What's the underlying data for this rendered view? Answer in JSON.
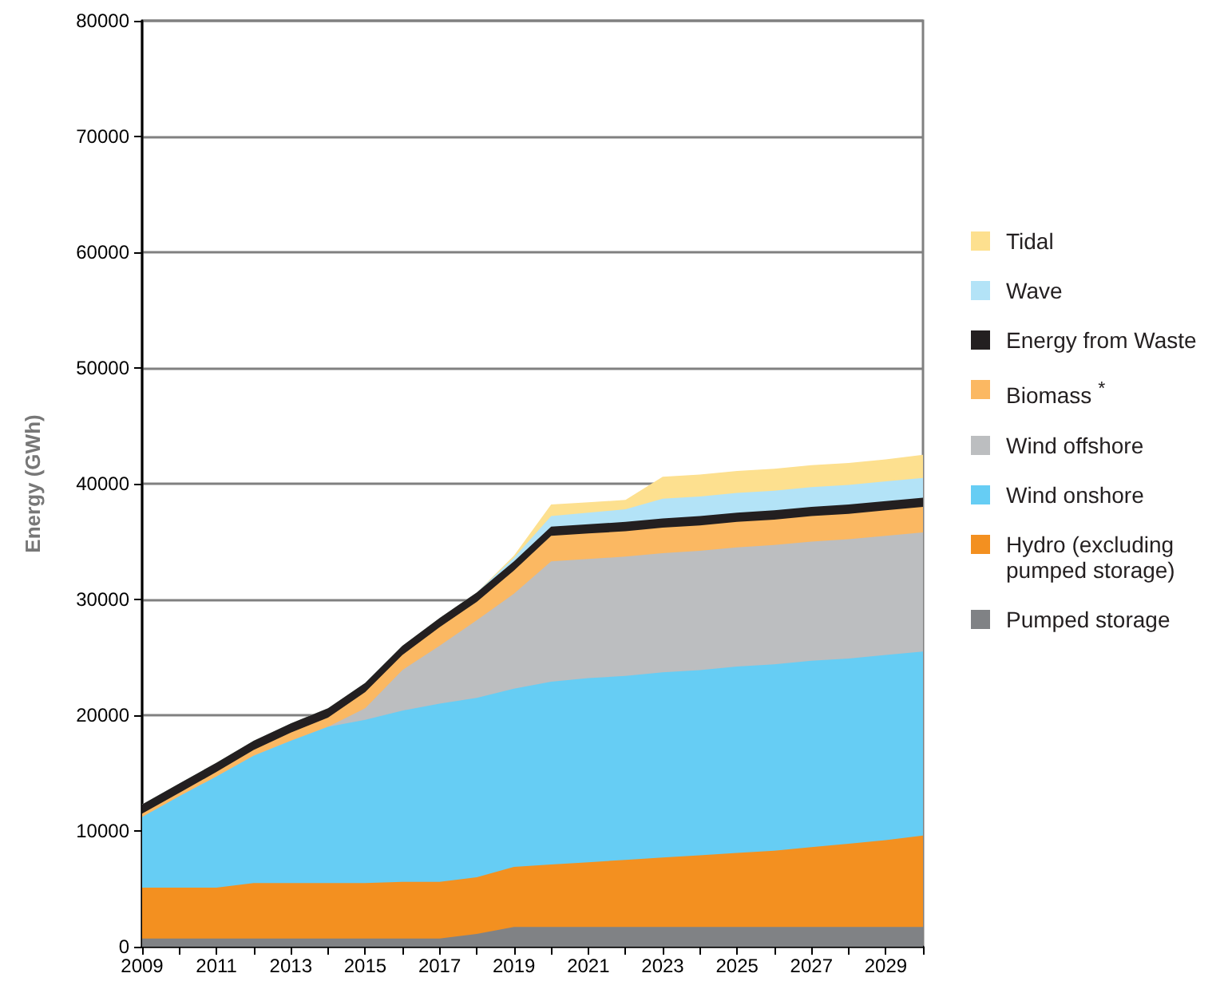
{
  "chart_data": {
    "type": "area",
    "stacked": true,
    "ylabel": "Energy (GWh)",
    "x": [
      2009,
      2010,
      2011,
      2012,
      2013,
      2014,
      2015,
      2016,
      2017,
      2018,
      2019,
      2020,
      2021,
      2022,
      2023,
      2024,
      2025,
      2026,
      2027,
      2028,
      2029,
      2030
    ],
    "xlim": [
      2009,
      2030
    ],
    "xticks": [
      2009,
      {
        "value": 2010,
        "label": null
      },
      2011,
      {
        "value": 2012,
        "label": null
      },
      2013,
      {
        "value": 2014,
        "label": null
      },
      2015,
      {
        "value": 2016,
        "label": null
      },
      2017,
      {
        "value": 2018,
        "label": null
      },
      2019,
      {
        "value": 2020,
        "label": null
      },
      2021,
      {
        "value": 2022,
        "label": null
      },
      2023,
      {
        "value": 2024,
        "label": null
      },
      2025,
      {
        "value": 2026,
        "label": null
      },
      2027,
      {
        "value": 2028,
        "label": null
      },
      2029,
      {
        "value": 2030,
        "label": null
      }
    ],
    "ylim": [
      0,
      80000
    ],
    "yticks": [
      0,
      10000,
      20000,
      30000,
      40000,
      50000,
      60000,
      70000,
      80000
    ],
    "grid": "y",
    "legend": "right",
    "series": [
      {
        "name": "Pumped storage",
        "color": "#808285",
        "values": [
          700,
          700,
          700,
          700,
          700,
          700,
          700,
          700,
          700,
          1100,
          1700,
          1700,
          1700,
          1700,
          1700,
          1700,
          1700,
          1700,
          1700,
          1700,
          1700,
          1700
        ]
      },
      {
        "name": "Hydro (excluding pumped storage)",
        "color": "#f39020",
        "values": [
          4400,
          4400,
          4400,
          4800,
          4800,
          4800,
          4800,
          4900,
          4900,
          4900,
          5200,
          5400,
          5600,
          5800,
          6000,
          6200,
          6400,
          6600,
          6900,
          7200,
          7500,
          7900
        ]
      },
      {
        "name": "Wind onshore",
        "color": "#66cdf4",
        "values": [
          6100,
          7900,
          9600,
          11000,
          12300,
          13500,
          14100,
          14800,
          15400,
          15500,
          15400,
          15800,
          15900,
          15900,
          16000,
          16000,
          16100,
          16100,
          16100,
          16000,
          16000,
          15900
        ]
      },
      {
        "name": "Wind offshore",
        "color": "#bcbec0",
        "values": [
          0,
          0,
          0,
          0,
          0,
          0,
          1000,
          3500,
          5000,
          6700,
          8200,
          10400,
          10300,
          10300,
          10300,
          10300,
          10300,
          10300,
          10300,
          10300,
          10300,
          10300
        ]
      },
      {
        "name": "Biomass $^{*}$",
        "color": "#fbb862",
        "values": [
          300,
          300,
          400,
          500,
          700,
          800,
          1400,
          1300,
          1600,
          1600,
          2000,
          2200,
          2200,
          2200,
          2200,
          2200,
          2200,
          2200,
          2200,
          2200,
          2200,
          2200
        ]
      },
      {
        "name": "Energy from Waste",
        "color": "#231f20",
        "values": [
          800,
          800,
          800,
          800,
          800,
          800,
          800,
          800,
          800,
          800,
          800,
          800,
          800,
          800,
          800,
          800,
          800,
          800,
          800,
          800,
          800,
          800
        ]
      },
      {
        "name": "Wave",
        "color": "#b3e3f7",
        "values": [
          0,
          0,
          0,
          0,
          0,
          0,
          0,
          0,
          0,
          0,
          300,
          900,
          1000,
          1100,
          1700,
          1700,
          1700,
          1700,
          1700,
          1700,
          1700,
          1700
        ]
      },
      {
        "name": "Tidal",
        "color": "#fde08f",
        "values": [
          0,
          0,
          0,
          0,
          0,
          0,
          0,
          0,
          0,
          0,
          200,
          1000,
          900,
          800,
          1900,
          1900,
          1900,
          1900,
          1900,
          1900,
          1900,
          2000
        ]
      }
    ]
  }
}
